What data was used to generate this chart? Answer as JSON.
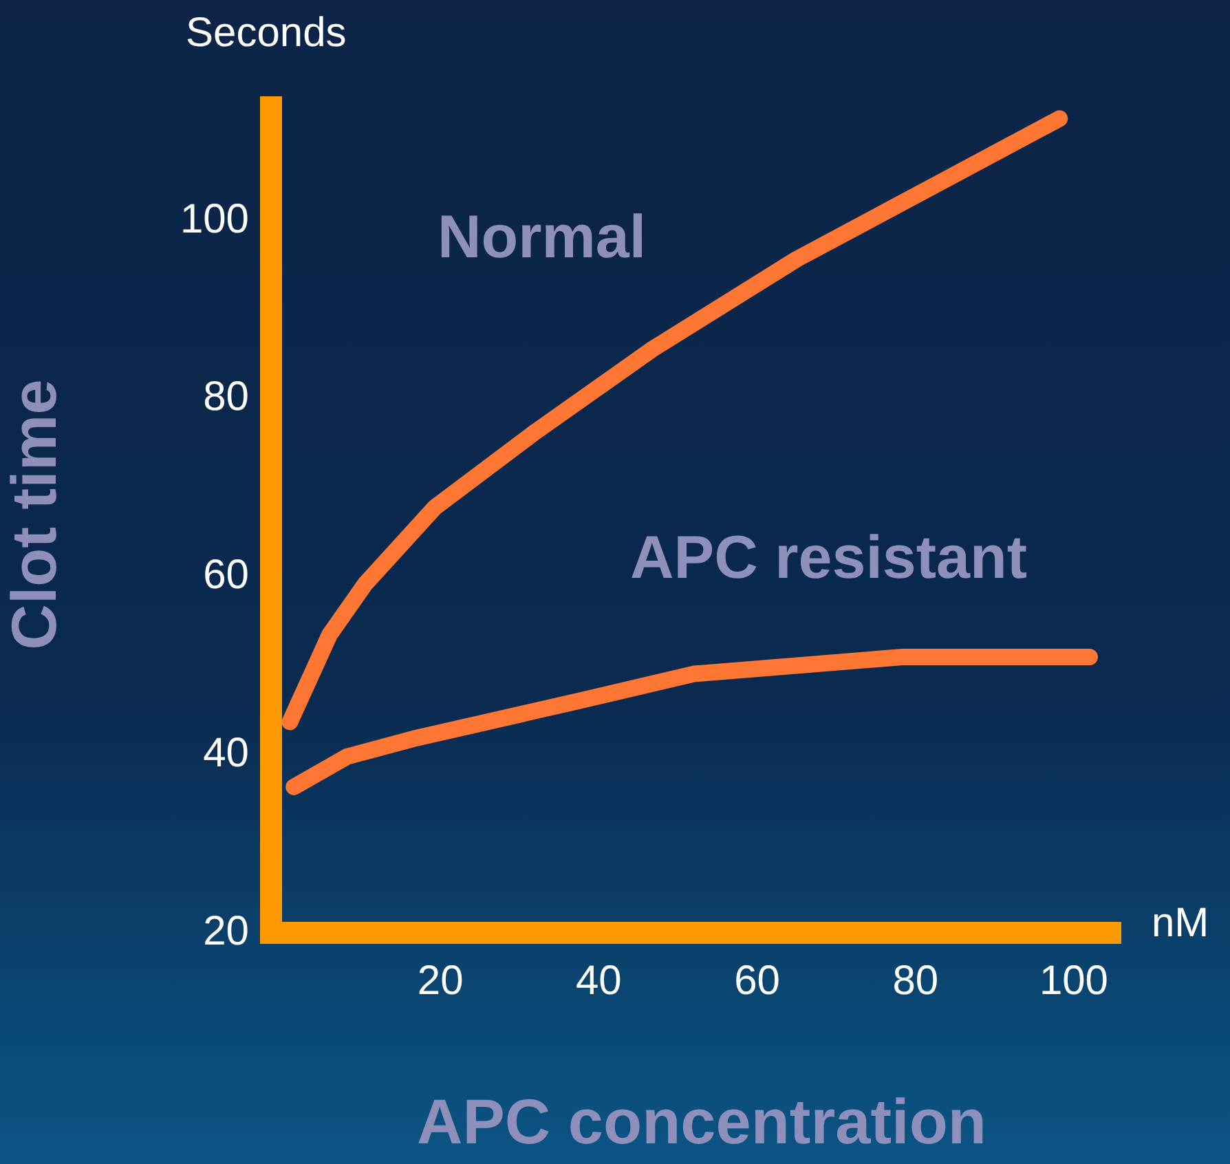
{
  "chart_data": {
    "type": "line",
    "xlabel": "APC concentration",
    "ylabel": "Clot time",
    "annotations": [
      "Seconds",
      "nM"
    ],
    "xlim": [
      0,
      106
    ],
    "xticks": [
      20,
      40,
      60,
      80,
      100
    ],
    "ylim": [
      20,
      114
    ],
    "yticks": [
      20,
      40,
      60,
      80,
      100
    ],
    "grid": false,
    "legend": false,
    "marker": "none",
    "line_style": "solid",
    "series": [
      {
        "name": "Normal",
        "color": "#ff7733",
        "x": [
          1,
          6,
          10.5,
          19.3,
          32,
          46.8,
          65,
          98.2
        ],
        "values": [
          43.7,
          53.5,
          59.2,
          67.8,
          76.3,
          85.6,
          95.7,
          111.5
        ]
      },
      {
        "name": "APC resistant",
        "color": "#ff7733",
        "x": [
          1.5,
          8.2,
          17,
          37.2,
          52,
          78.4,
          102
        ],
        "values": [
          36.4,
          39.8,
          41.9,
          46,
          49.1,
          51,
          51
        ]
      }
    ]
  }
}
